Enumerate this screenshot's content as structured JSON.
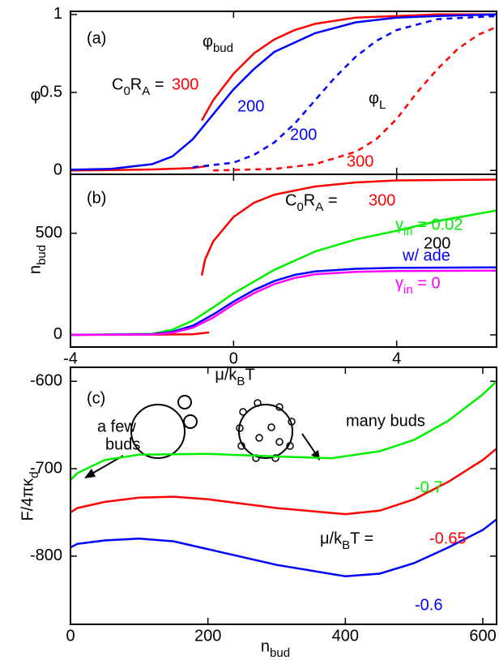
{
  "chart_data": [
    {
      "type": "line",
      "xlim": [
        -4,
        6.45
      ],
      "ylim": [
        -0.025,
        1.02
      ],
      "xticks": [
        -4,
        0,
        4
      ],
      "yticks": [
        0,
        0.5,
        1
      ],
      "ylabel": "φ",
      "series": [
        {
          "color": "#ff0000",
          "dash": false,
          "x": [
            -0.78,
            -0.5,
            0,
            0.5,
            1,
            1.5,
            2,
            3,
            4,
            5,
            6.45
          ],
          "values": [
            0.32,
            0.45,
            0.62,
            0.75,
            0.84,
            0.9,
            0.94,
            0.98,
            0.99,
            1.0,
            1.0
          ]
        },
        {
          "color": "#ff0000",
          "dash": false,
          "x": [
            -4,
            -3,
            -2,
            -1,
            -0.6
          ],
          "values": [
            0.0,
            0.002,
            0.006,
            0.015,
            0.03
          ]
        },
        {
          "color": "#0000ff",
          "dash": false,
          "x": [
            -4,
            -3,
            -2,
            -1.5,
            -1,
            -0.5,
            0,
            0.5,
            1,
            2,
            3,
            4,
            5,
            6.45
          ],
          "values": [
            0.005,
            0.01,
            0.04,
            0.09,
            0.2,
            0.36,
            0.52,
            0.65,
            0.76,
            0.88,
            0.95,
            0.98,
            0.99,
            1.0
          ]
        },
        {
          "color": "#0000ff",
          "dash": true,
          "x": [
            -1,
            0,
            0.5,
            1,
            1.5,
            2,
            2.5,
            3,
            3.5,
            4,
            5,
            6.45
          ],
          "values": [
            0.02,
            0.05,
            0.1,
            0.18,
            0.3,
            0.45,
            0.6,
            0.73,
            0.83,
            0.9,
            0.97,
            0.99
          ]
        },
        {
          "color": "#ff0000",
          "dash": true,
          "x": [
            -0.5,
            1,
            2,
            3,
            3.5,
            4,
            4.5,
            5,
            5.5,
            6,
            6.45
          ],
          "values": [
            0.0,
            0.01,
            0.04,
            0.12,
            0.2,
            0.33,
            0.5,
            0.65,
            0.78,
            0.87,
            0.92
          ]
        }
      ],
      "annotations": [
        {
          "text": "(a)",
          "color": "#000000"
        },
        {
          "text": "φ_{bud}",
          "color": "#000000"
        },
        {
          "text": "φ_{L}",
          "color": "#000000"
        },
        {
          "text": "C_{0}R_{A} =",
          "color": "#000000"
        },
        {
          "text": "300",
          "color": "#ff0000"
        },
        {
          "text": "200",
          "color": "#0000ff"
        },
        {
          "text": "200",
          "color": "#0000ff"
        },
        {
          "text": "300",
          "color": "#ff0000"
        }
      ]
    },
    {
      "type": "line",
      "xlim": [
        -4,
        6.45
      ],
      "ylim": [
        -60,
        790
      ],
      "xticks": [
        -4,
        0,
        4
      ],
      "yticks": [
        0,
        500
      ],
      "xlabel": "μ/k_{B}T",
      "ylabel": "n_{bud}",
      "series": [
        {
          "color": "#ff0000",
          "x": [
            -0.78,
            -0.7,
            -0.5,
            0,
            0.5,
            1,
            2,
            3,
            4,
            6.45
          ],
          "values": [
            292,
            370,
            460,
            580,
            650,
            690,
            730,
            750,
            760,
            764
          ]
        },
        {
          "color": "#ff0000",
          "x": [
            -4,
            -2,
            -1,
            -0.6
          ],
          "values": [
            0,
            1,
            3,
            12
          ]
        },
        {
          "color": "#00ee00",
          "x": [
            -4,
            -2,
            -1.5,
            -1,
            -0.5,
            0,
            1,
            2,
            3,
            4,
            5,
            6.45
          ],
          "values": [
            0,
            5,
            25,
            70,
            135,
            204,
            320,
            410,
            470,
            512,
            560,
            612
          ]
        },
        {
          "color": "#0000ff",
          "x": [
            -4,
            -2,
            -1.5,
            -1,
            -0.5,
            0,
            0.5,
            1,
            1.5,
            2,
            3,
            4,
            6.45
          ],
          "values": [
            0,
            3,
            15,
            45,
            100,
            164,
            220,
            265,
            295,
            312,
            325,
            330,
            332
          ]
        },
        {
          "color": "#ff00ff",
          "x": [
            -4,
            -2,
            -1.5,
            -1,
            -0.5,
            0,
            0.5,
            1,
            1.5,
            2,
            3,
            4,
            6.45
          ],
          "values": [
            0,
            2,
            10,
            35,
            85,
            150,
            205,
            250,
            280,
            298,
            310,
            314,
            316
          ]
        }
      ],
      "annotations": [
        {
          "text": "(b)",
          "color": "#000000"
        },
        {
          "text": "C_{0}R_{A} =",
          "color": "#000000"
        },
        {
          "text": "300",
          "color": "#ff0000"
        },
        {
          "text": "γ_{in} = 0.02",
          "color": "#00ee00"
        },
        {
          "text": "200",
          "color": "#000000"
        },
        {
          "text": "w/ ade",
          "color": "#0000ff"
        },
        {
          "text": "γ_{in} = 0",
          "color": "#ff00ff"
        }
      ]
    },
    {
      "type": "line",
      "xlim": [
        0,
        620
      ],
      "ylim": [
        -878,
        -584
      ],
      "xticks": [
        0,
        200,
        400,
        600
      ],
      "yticks": [
        -600,
        -700,
        -800
      ],
      "xlabel": "n_{bud}",
      "ylabel": "F/4πκ_{d}",
      "series": [
        {
          "color": "#00ee00",
          "x": [
            0,
            10,
            50,
            100,
            200,
            300,
            380,
            450,
            500,
            550,
            600,
            620
          ],
          "values": [
            -713,
            -705,
            -690,
            -684,
            -683,
            -686,
            -688,
            -680,
            -667,
            -645,
            -615,
            -600
          ]
        },
        {
          "color": "#ff0000",
          "x": [
            0,
            10,
            50,
            100,
            150,
            200,
            300,
            400,
            450,
            500,
            550,
            600,
            620
          ],
          "values": [
            -750,
            -745,
            -738,
            -733,
            -732,
            -735,
            -745,
            -752,
            -748,
            -735,
            -715,
            -690,
            -677
          ]
        },
        {
          "color": "#0000ff",
          "x": [
            0,
            10,
            50,
            100,
            150,
            200,
            300,
            400,
            450,
            500,
            550,
            600,
            620
          ],
          "values": [
            -790,
            -786,
            -782,
            -780,
            -783,
            -792,
            -810,
            -823,
            -820,
            -808,
            -790,
            -770,
            -758
          ]
        }
      ],
      "annotations": [
        {
          "text": "(c)",
          "color": "#000000"
        },
        {
          "text": "a few",
          "color": "#000000"
        },
        {
          "text": "buds",
          "color": "#000000"
        },
        {
          "text": "many buds",
          "color": "#000000"
        },
        {
          "text": "-0.7",
          "color": "#00ee00"
        },
        {
          "text": "μ/k_{B}T =",
          "color": "#000000"
        },
        {
          "text": "-0.65",
          "color": "#ff0000"
        },
        {
          "text": "-0.6",
          "color": "#0000ff"
        }
      ]
    }
  ]
}
